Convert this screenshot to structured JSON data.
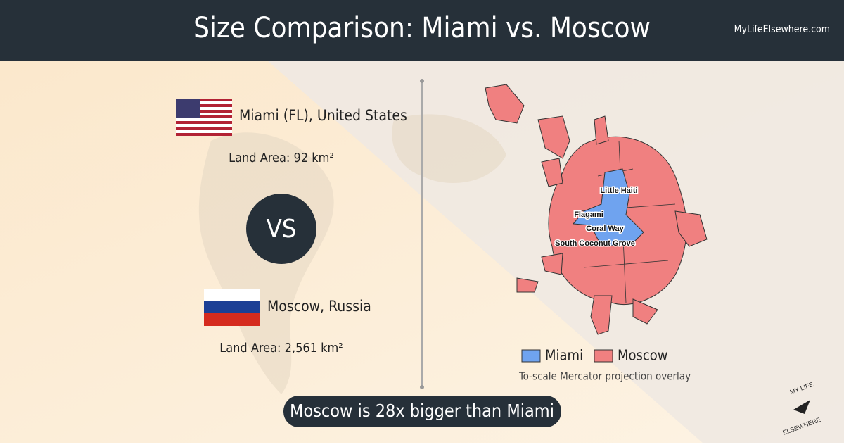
{
  "header": {
    "title": "Size Comparison: Miami vs. Moscow",
    "site": "MyLifeElsewhere.com"
  },
  "comparison": {
    "first": {
      "name": "Miami (FL), United States",
      "area": "Land Area: 92 km²"
    },
    "separator": "VS",
    "second": {
      "name": "Moscow, Russia",
      "area": "Land Area: 2,561 km²"
    }
  },
  "map": {
    "labels": [
      "Little Haiti",
      "Flagami",
      "Coral Way",
      "South Coconut Grove"
    ],
    "legend": [
      "Miami",
      "Moscow"
    ],
    "note": "To-scale Mercator projection overlay"
  },
  "summary": "Moscow is 28x bigger than Miami",
  "logo": {
    "top": "MY LIFE",
    "bottom": "ELSEWHERE"
  }
}
